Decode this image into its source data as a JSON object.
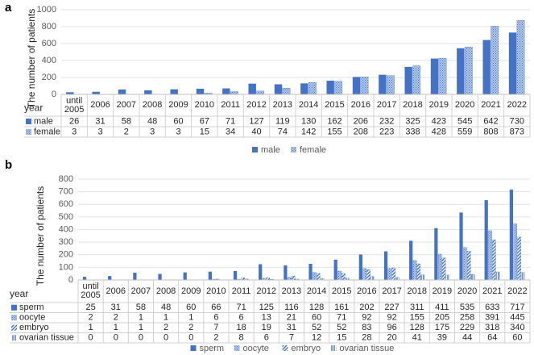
{
  "chart_data": [
    {
      "type": "bar",
      "panel_label": "a",
      "y_label": "The number of patients",
      "table_header": "year",
      "categories": [
        "until 2005",
        "2006",
        "2007",
        "2008",
        "2009",
        "2010",
        "2011",
        "2012",
        "2013",
        "2014",
        "2015",
        "2016",
        "2017",
        "2018",
        "2019",
        "2020",
        "2021",
        "2022"
      ],
      "series": [
        {
          "name": "male",
          "color": "#4472c4",
          "pattern": "solid",
          "values": [
            26,
            31,
            58,
            48,
            60,
            67,
            71,
            127,
            119,
            130,
            162,
            206,
            232,
            325,
            423,
            545,
            642,
            730
          ]
        },
        {
          "name": "female",
          "color": "#4472c4",
          "pattern": "dots",
          "values": [
            3,
            3,
            2,
            3,
            3,
            15,
            34,
            40,
            74,
            142,
            155,
            208,
            223,
            338,
            428,
            559,
            808,
            873
          ]
        }
      ],
      "ylim": [
        0,
        1000
      ],
      "yticks": [
        0,
        200,
        400,
        600,
        800,
        1000
      ],
      "grid": true,
      "legend": "bottom"
    },
    {
      "type": "bar",
      "panel_label": "b",
      "y_label": "The number of patients",
      "table_header": "year",
      "categories": [
        "until 2005",
        "2006",
        "2007",
        "2008",
        "2009",
        "2010",
        "2011",
        "2012",
        "2013",
        "2014",
        "2015",
        "2016",
        "2017",
        "2018",
        "2019",
        "2020",
        "2021",
        "2022"
      ],
      "series": [
        {
          "name": "sperm",
          "color": "#4472c4",
          "pattern": "solid",
          "values": [
            25,
            31,
            58,
            48,
            60,
            66,
            71,
            125,
            116,
            128,
            161,
            202,
            227,
            311,
            411,
            535,
            633,
            717
          ]
        },
        {
          "name": "oocyte",
          "color": "#4472c4",
          "pattern": "dots",
          "values": [
            2,
            2,
            1,
            1,
            1,
            6,
            6,
            13,
            21,
            60,
            71,
            92,
            92,
            155,
            205,
            258,
            391,
            445
          ]
        },
        {
          "name": "embryo",
          "color": "#4472c4",
          "pattern": "diagonal",
          "values": [
            1,
            1,
            1,
            2,
            2,
            7,
            18,
            19,
            31,
            52,
            52,
            83,
            96,
            128,
            175,
            229,
            318,
            340
          ]
        },
        {
          "name": "ovarian tissue",
          "color": "#4472c4",
          "pattern": "vertical",
          "values": [
            0,
            0,
            0,
            0,
            0,
            2,
            8,
            6,
            7,
            12,
            15,
            28,
            20,
            41,
            39,
            44,
            64,
            60
          ]
        }
      ],
      "ylim": [
        0,
        800
      ],
      "yticks": [
        0,
        100,
        200,
        300,
        400,
        500,
        600,
        700,
        800
      ],
      "grid": true,
      "legend": "bottom"
    }
  ]
}
